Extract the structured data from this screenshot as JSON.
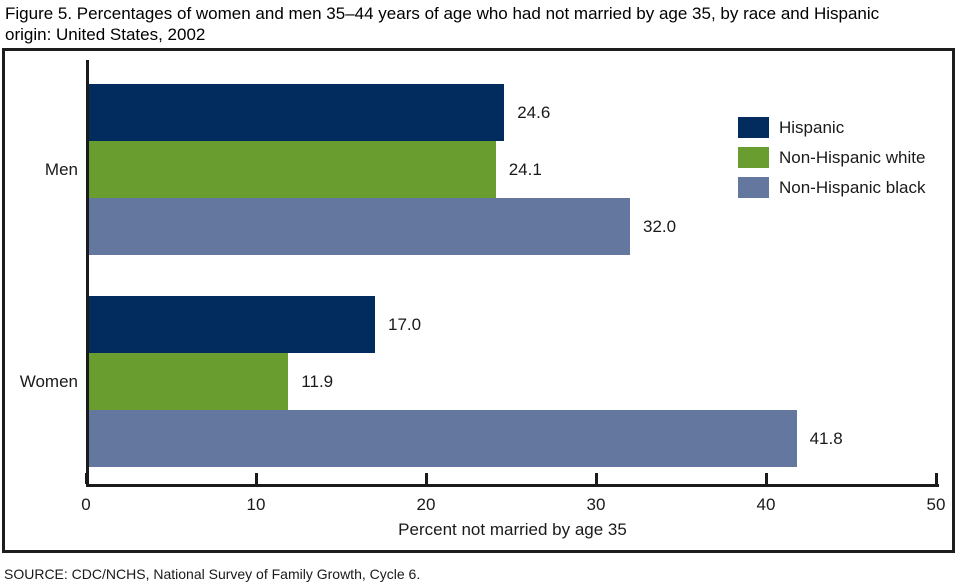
{
  "title": "Figure 5. Percentages of women and men 35–44 years of age who had not married by age 35, by race and Hispanic origin: United States, 2002",
  "source": "SOURCE: CDC/NCHS, National Survey of Family Growth, Cycle 6.",
  "colors": {
    "hispanic": "#032c5e",
    "non_hispanic_white": "#699d30",
    "non_hispanic_black": "#64779e",
    "axis": "#1a1a1a",
    "frame_border": "#1d1d1f"
  },
  "chart_data": {
    "type": "bar",
    "orientation": "horizontal",
    "title": "Figure 5. Percentages of women and men 35–44 years of age who had not married by age 35, by race and Hispanic origin: United States, 2002",
    "categories": [
      "Men",
      "Women"
    ],
    "series": [
      {
        "name": "Hispanic",
        "color": "#032c5e",
        "values": [
          24.6,
          17.0
        ],
        "labels": [
          "24.6",
          "17.0"
        ]
      },
      {
        "name": "Non-Hispanic white",
        "color": "#699d30",
        "values": [
          24.1,
          11.9
        ],
        "labels": [
          "24.1",
          "11.9"
        ]
      },
      {
        "name": "Non-Hispanic black",
        "color": "#64779e",
        "values": [
          32.0,
          41.8
        ],
        "labels": [
          "32.0",
          "41.8"
        ]
      }
    ],
    "xlabel": "Percent not married by age 35",
    "ylabel": "",
    "xlim": [
      0,
      50
    ],
    "xticks": [
      0,
      10,
      20,
      30,
      40,
      50
    ],
    "xtick_labels": [
      "0",
      "10",
      "20",
      "30",
      "40",
      "50"
    ],
    "legend_position": "top-right",
    "grid": false
  }
}
